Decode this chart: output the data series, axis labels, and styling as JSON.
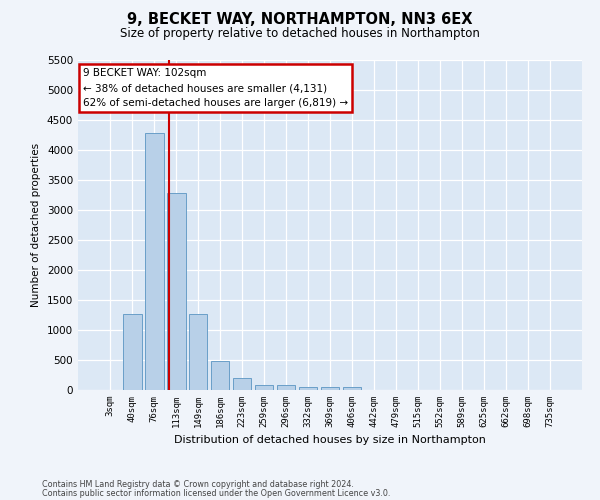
{
  "title": "9, BECKET WAY, NORTHAMPTON, NN3 6EX",
  "subtitle": "Size of property relative to detached houses in Northampton",
  "xlabel": "Distribution of detached houses by size in Northampton",
  "ylabel": "Number of detached properties",
  "footnote1": "Contains HM Land Registry data © Crown copyright and database right 2024.",
  "footnote2": "Contains public sector information licensed under the Open Government Licence v3.0.",
  "bar_labels": [
    "3sqm",
    "40sqm",
    "76sqm",
    "113sqm",
    "149sqm",
    "186sqm",
    "223sqm",
    "259sqm",
    "296sqm",
    "332sqm",
    "369sqm",
    "406sqm",
    "442sqm",
    "479sqm",
    "515sqm",
    "552sqm",
    "589sqm",
    "625sqm",
    "662sqm",
    "698sqm",
    "735sqm"
  ],
  "bar_values": [
    0,
    1260,
    4280,
    3290,
    1270,
    480,
    195,
    90,
    80,
    45,
    45,
    50,
    0,
    0,
    0,
    0,
    0,
    0,
    0,
    0,
    0
  ],
  "bar_color": "#b8d0e8",
  "bar_edge_color": "#6a9fc8",
  "vline_x_index": 2.68,
  "vline_color": "#cc0000",
  "ylim": [
    0,
    5500
  ],
  "yticks": [
    0,
    500,
    1000,
    1500,
    2000,
    2500,
    3000,
    3500,
    4000,
    4500,
    5000,
    5500
  ],
  "annotation_text": "9 BECKET WAY: 102sqm\n← 38% of detached houses are smaller (4,131)\n62% of semi-detached houses are larger (6,819) →",
  "annotation_box_facecolor": "#ffffff",
  "annotation_box_edgecolor": "#cc0000",
  "fig_facecolor": "#f0f4fa",
  "ax_facecolor": "#dce8f5"
}
